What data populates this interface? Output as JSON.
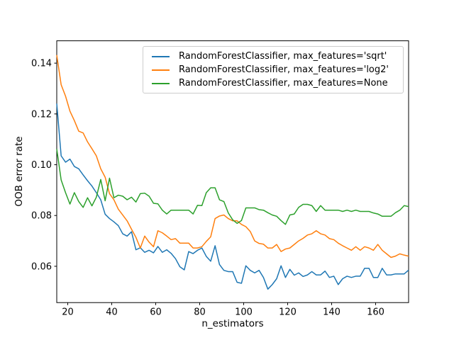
{
  "figure": {
    "background": "#ffffff",
    "xlabel": "n_estimators",
    "ylabel": "OOB error rate"
  },
  "legend": {
    "entries": [
      {
        "label": "RandomForestClassifier, max_features='sqrt'",
        "color": "#1f77b4"
      },
      {
        "label": "RandomForestClassifier, max_features='log2'",
        "color": "#ff7f0e"
      },
      {
        "label": "RandomForestClassifier, max_features=None",
        "color": "#2ca02c"
      }
    ]
  },
  "chart_data": {
    "type": "line",
    "title": "",
    "xlabel": "n_estimators",
    "ylabel": "OOB error rate",
    "xlim": [
      15,
      175
    ],
    "ylim": [
      0.0457,
      0.1488
    ],
    "x_ticks": [
      20,
      40,
      60,
      80,
      100,
      120,
      140,
      160
    ],
    "y_tick_labels": [
      "0.06",
      "0.08",
      "0.10",
      "0.12",
      "0.14"
    ],
    "y_ticks": [
      0.06,
      0.08,
      0.1,
      0.12,
      0.14
    ],
    "grid": false,
    "legend_position": "upper right inside",
    "line_width": 1.5,
    "x": [
      15,
      17,
      19,
      21,
      23,
      25,
      27,
      29,
      31,
      33,
      35,
      37,
      39,
      41,
      43,
      45,
      47,
      49,
      51,
      53,
      55,
      57,
      59,
      61,
      63,
      65,
      67,
      69,
      71,
      73,
      75,
      77,
      79,
      81,
      83,
      85,
      87,
      89,
      91,
      93,
      95,
      97,
      99,
      101,
      103,
      105,
      107,
      109,
      111,
      113,
      115,
      117,
      119,
      121,
      123,
      125,
      127,
      129,
      131,
      133,
      135,
      137,
      139,
      141,
      143,
      145,
      147,
      149,
      151,
      153,
      155,
      157,
      159,
      161,
      163,
      165,
      167,
      169,
      171,
      173,
      175
    ],
    "series": [
      {
        "name": "RandomForestClassifier, max_features='sqrt'",
        "color": "#1f77b4",
        "values": [
          0.1241,
          0.1035,
          0.101,
          0.1022,
          0.0993,
          0.0984,
          0.096,
          0.0937,
          0.0916,
          0.089,
          0.0862,
          0.0805,
          0.0788,
          0.0775,
          0.076,
          0.0728,
          0.0719,
          0.0736,
          0.0665,
          0.0673,
          0.0655,
          0.0663,
          0.0653,
          0.0678,
          0.0655,
          0.0665,
          0.0651,
          0.063,
          0.0598,
          0.0586,
          0.0658,
          0.065,
          0.0663,
          0.0672,
          0.0639,
          0.062,
          0.0681,
          0.0607,
          0.0584,
          0.0579,
          0.0579,
          0.0537,
          0.0533,
          0.0602,
          0.0584,
          0.0574,
          0.0584,
          0.0556,
          0.051,
          0.0528,
          0.0551,
          0.0602,
          0.0556,
          0.0588,
          0.0565,
          0.0574,
          0.056,
          0.0566,
          0.0579,
          0.0566,
          0.0566,
          0.0581,
          0.0556,
          0.0561,
          0.0528,
          0.0551,
          0.0561,
          0.0556,
          0.0561,
          0.0561,
          0.0592,
          0.0592,
          0.0556,
          0.0556,
          0.0592,
          0.0566,
          0.0566,
          0.057,
          0.057,
          0.057,
          0.0585
        ]
      },
      {
        "name": "RandomForestClassifier, max_features='log2'",
        "color": "#ff7f0e",
        "values": [
          0.1432,
          0.1315,
          0.127,
          0.1211,
          0.1174,
          0.1132,
          0.1125,
          0.109,
          0.1063,
          0.1035,
          0.0984,
          0.0951,
          0.0886,
          0.0862,
          0.0825,
          0.0802,
          0.0779,
          0.0746,
          0.0714,
          0.0672,
          0.0719,
          0.0695,
          0.0677,
          0.074,
          0.0732,
          0.0719,
          0.0705,
          0.0709,
          0.0691,
          0.0691,
          0.0691,
          0.0672,
          0.0672,
          0.0677,
          0.0698,
          0.0716,
          0.0788,
          0.0798,
          0.0802,
          0.0788,
          0.0779,
          0.0779,
          0.0765,
          0.0756,
          0.0737,
          0.07,
          0.069,
          0.0687,
          0.0672,
          0.0672,
          0.0686,
          0.0658,
          0.0668,
          0.0672,
          0.0686,
          0.07,
          0.071,
          0.0723,
          0.0728,
          0.074,
          0.0728,
          0.0723,
          0.0709,
          0.0705,
          0.0691,
          0.0681,
          0.0672,
          0.0663,
          0.0677,
          0.0663,
          0.0677,
          0.0672,
          0.0663,
          0.0686,
          0.0663,
          0.0649,
          0.0635,
          0.064,
          0.0649,
          0.0644,
          0.064
        ]
      },
      {
        "name": "RandomForestClassifier, max_features=None",
        "color": "#2ca02c",
        "values": [
          0.1062,
          0.094,
          0.089,
          0.0845,
          0.089,
          0.0855,
          0.0832,
          0.087,
          0.0838,
          0.0872,
          0.0942,
          0.0858,
          0.0947,
          0.087,
          0.088,
          0.0876,
          0.0862,
          0.0872,
          0.0853,
          0.0886,
          0.0888,
          0.0876,
          0.0848,
          0.0846,
          0.0821,
          0.0806,
          0.0821,
          0.0821,
          0.0821,
          0.0821,
          0.0821,
          0.0806,
          0.084,
          0.0839,
          0.089,
          0.0909,
          0.0909,
          0.0862,
          0.0855,
          0.081,
          0.0783,
          0.0769,
          0.078,
          0.083,
          0.083,
          0.083,
          0.0823,
          0.0821,
          0.0811,
          0.0802,
          0.0797,
          0.078,
          0.0765,
          0.0802,
          0.0806,
          0.0832,
          0.0844,
          0.0844,
          0.0839,
          0.0816,
          0.0839,
          0.0821,
          0.0821,
          0.0821,
          0.0821,
          0.0816,
          0.0821,
          0.0816,
          0.0821,
          0.0816,
          0.0816,
          0.0816,
          0.081,
          0.0806,
          0.0797,
          0.0797,
          0.0797,
          0.0811,
          0.0821,
          0.0839,
          0.0835
        ]
      }
    ]
  }
}
